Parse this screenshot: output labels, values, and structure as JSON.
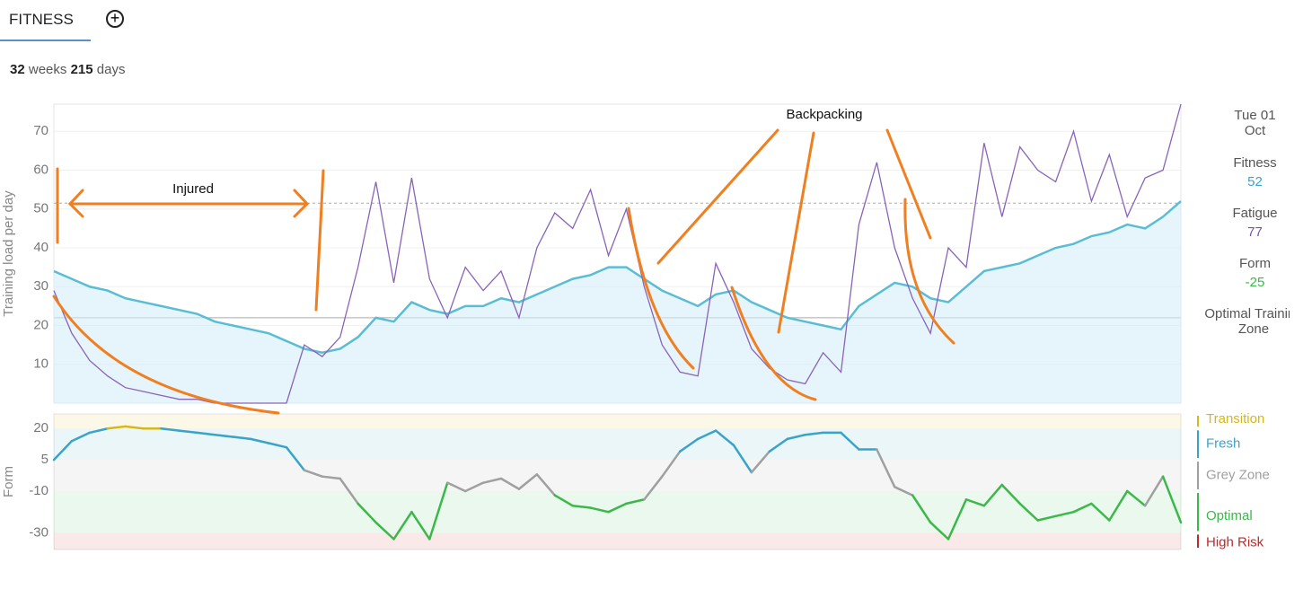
{
  "tab": "FITNESS",
  "summary": {
    "weeks": 32,
    "weeks_label": "weeks",
    "days": 215,
    "days_label": "days"
  },
  "side_panel": {
    "date": "Tue 01 Oct",
    "fitness_label": "Fitness",
    "fitness": 52,
    "fatigue_label": "Fatigue",
    "fatigue": 77,
    "form_label": "Form",
    "form": -25,
    "zone_label": "Optimal Training Zone"
  },
  "chart_data": [
    {
      "type": "line",
      "y_label": "Training load per day",
      "ylim": [
        0,
        77
      ],
      "yticks": [
        10,
        20,
        30,
        40,
        50,
        60,
        70
      ],
      "grid": true,
      "reference_lines": [
        51.5,
        22
      ],
      "annotations": [
        "Injured",
        "Backpacking"
      ],
      "series": [
        {
          "name": "Fitness",
          "color": "#5bbcd6",
          "fill": true,
          "values": [
            34,
            32,
            30,
            29,
            27,
            26,
            25,
            24,
            23,
            21,
            20,
            19,
            18,
            16,
            14,
            13,
            14,
            17,
            22,
            21,
            26,
            24,
            23,
            25,
            25,
            27,
            26,
            28,
            30,
            32,
            33,
            35,
            35,
            32,
            29,
            27,
            25,
            28,
            29,
            26,
            24,
            22,
            21,
            20,
            19,
            25,
            28,
            31,
            30,
            27,
            26,
            30,
            34,
            35,
            36,
            38,
            40,
            41,
            43,
            44,
            46,
            45,
            48,
            52
          ]
        },
        {
          "name": "Fatigue",
          "color": "#8a63b8",
          "fill": false,
          "values": [
            29,
            18,
            11,
            7,
            4,
            3,
            2,
            1,
            1,
            0,
            0,
            0,
            0,
            0,
            15,
            12,
            17,
            35,
            57,
            31,
            58,
            32,
            22,
            35,
            29,
            34,
            22,
            40,
            49,
            45,
            55,
            38,
            50,
            30,
            15,
            8,
            7,
            36,
            26,
            14,
            9,
            6,
            5,
            13,
            8,
            46,
            62,
            40,
            27,
            18,
            40,
            35,
            67,
            48,
            66,
            60,
            57,
            70,
            52,
            64,
            48,
            58,
            60,
            77
          ]
        }
      ]
    },
    {
      "type": "line",
      "y_label": "Form",
      "ylim": [
        -38,
        27
      ],
      "yticks": [
        20,
        5,
        -10,
        -30
      ],
      "zones": [
        {
          "name": "Transition",
          "color": "#d4b81c",
          "range": [
            20,
            27
          ]
        },
        {
          "name": "Fresh",
          "color": "#3aa3c9",
          "range": [
            5,
            20
          ]
        },
        {
          "name": "Grey Zone",
          "color": "#a0a0a0",
          "range": [
            -10,
            5
          ]
        },
        {
          "name": "Optimal",
          "color": "#3cb84a",
          "range": [
            -30,
            -10
          ]
        },
        {
          "name": "High Risk",
          "color": "#c0282a",
          "range": [
            -38,
            -30
          ]
        }
      ],
      "series": [
        {
          "name": "Form",
          "values": [
            5,
            14,
            18,
            20,
            21,
            20,
            20,
            19,
            18,
            17,
            16,
            15,
            13,
            11,
            0,
            -3,
            -4,
            -16,
            -25,
            -33,
            -20,
            -33,
            -6,
            -10,
            -6,
            -4,
            -9,
            -2,
            -12,
            -17,
            -18,
            -20,
            -16,
            -14,
            -3,
            9,
            15,
            19,
            12,
            -1,
            9,
            15,
            17,
            18,
            18,
            10,
            10,
            -8,
            -12,
            -25,
            -33,
            -14,
            -17,
            -7,
            -16,
            -24,
            -22,
            -20,
            -16,
            -24,
            -10,
            -17,
            -3,
            -25
          ]
        }
      ]
    }
  ]
}
